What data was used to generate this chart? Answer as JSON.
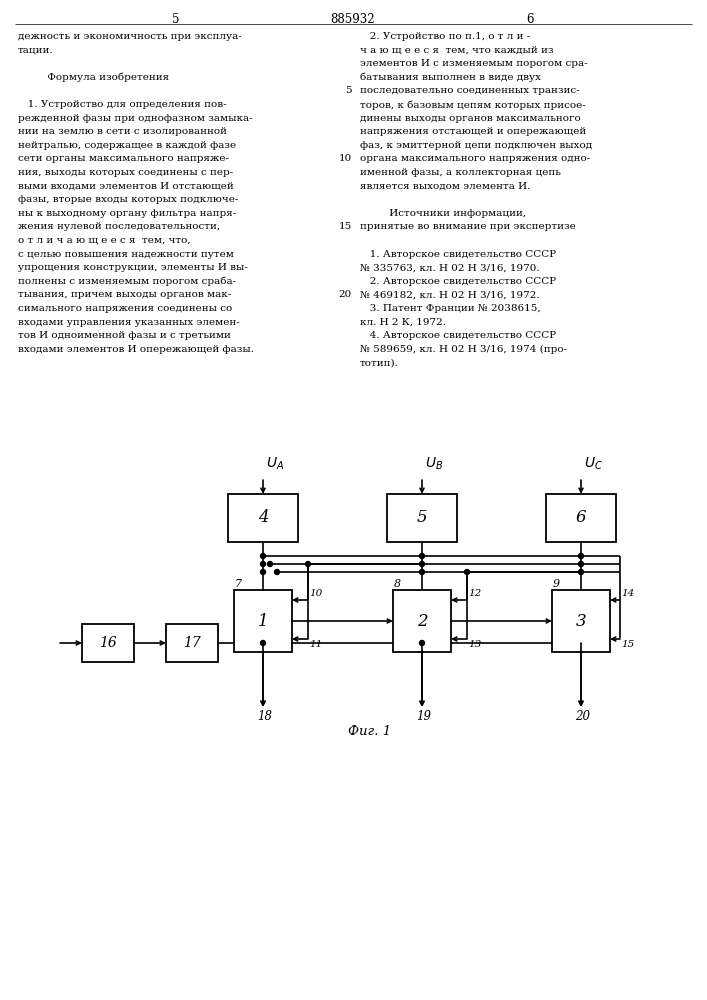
{
  "left_column_text": [
    "дежность и экономичность при эксплуа-",
    "тации.",
    "",
    "         Формула изобретения",
    "",
    "   1. Устройство для определения пов-",
    "режденной фазы при однофазном замыка-",
    "нии на землю в сети с изолированной",
    "нейтралью, содержащее в каждой фазе",
    "сети органы максимального напряже-",
    "ния, выходы которых соединены с пер-",
    "выми входами элементов И отстающей",
    "фазы, вторые входы которых подключе-",
    "ны к выходному органу фильтра напря-",
    "жения нулевой последовательности,",
    "о т л и ч а ю щ е е с я  тем, что,",
    "с целью повышения надежности путем",
    "упрощения конструкции, элементы И вы-",
    "полнены с изменяемым порогом сраба-",
    "тывания, причем выходы органов мак-",
    "симального напряжения соединены со",
    "входами управления указанных элемен-",
    "тов И одноименной фазы и с третьими",
    "входами элементов И опережающей фазы."
  ],
  "right_column_text": [
    "   2. Устройство по п.1, о т л и -",
    "ч а ю щ е е с я  тем, что каждый из",
    "элементов И с изменяемым порогом сра-",
    "батывания выполнен в виде двух",
    "последовательно соединенных транзис-",
    "торов, к базовым цепям которых присое-",
    "динены выходы органов максимального",
    "напряжения отстающей и опережающей",
    "фаз, к эмиттерной цепи подключен выход",
    "органа максимального напряжения одно-",
    "именной фазы, а коллекторная цепь",
    "является выходом элемента И.",
    "",
    "         Источники информации,",
    "принятые во внимание при экспертизе",
    "",
    "   1. Авторское свидетельство СССР",
    "№ 335763, кл. Н 02 Н 3/16, 1970.",
    "   2. Авторское свидетельство СССР",
    "№ 469182, кл. Н 02 Н 3/16, 1972.",
    "   3. Патент Франции № 2038615,",
    "кл. Н 2 К, 1972.",
    "   4. Авторское свидетельство СССР",
    "№ 589659, кл. Н 02 Н 3/16, 1974 (про-",
    "тотип)."
  ],
  "line_nums": [
    [
      5,
      4
    ],
    [
      10,
      9
    ],
    [
      15,
      14
    ],
    [
      20,
      19
    ]
  ],
  "background_color": "#ffffff"
}
